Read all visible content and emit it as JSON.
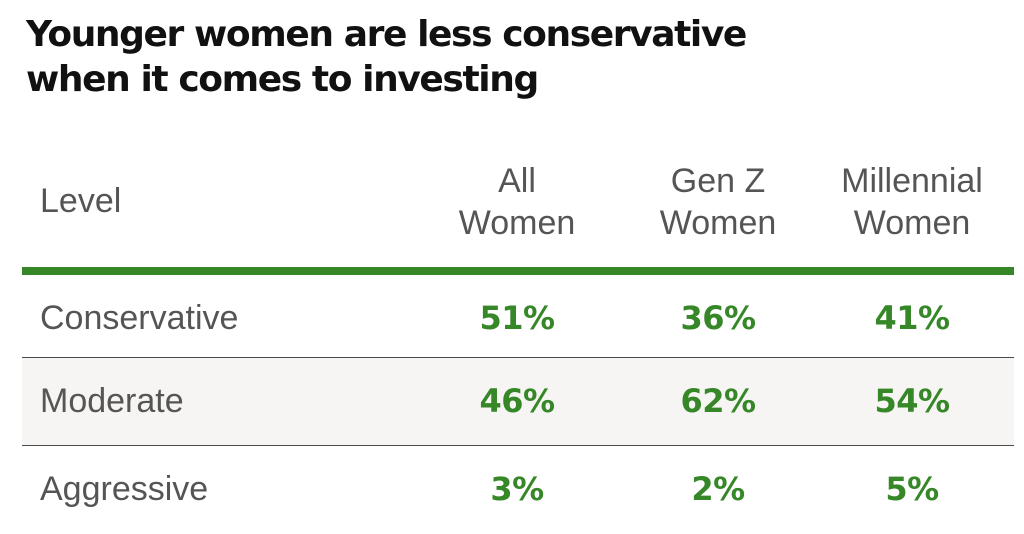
{
  "title": {
    "line1": "Younger women are less conservative",
    "line2": "when it comes to investing"
  },
  "colors": {
    "accent_green": "#368727",
    "header_text": "#555555",
    "title_text": "#111111",
    "shaded_row": "#f6f5f3"
  },
  "chart_data": {
    "type": "table",
    "title": "Younger women are less conservative when it comes to investing",
    "row_header": "Level",
    "columns": [
      {
        "line1": "All",
        "line2": "Women"
      },
      {
        "line1": "Gen Z",
        "line2": "Women"
      },
      {
        "line1": "Millennial",
        "line2": "Women"
      }
    ],
    "rows": [
      {
        "label": "Conservative",
        "values": [
          "51%",
          "36%",
          "41%"
        ]
      },
      {
        "label": "Moderate",
        "values": [
          "46%",
          "62%",
          "54%"
        ]
      },
      {
        "label": "Aggressive",
        "values": [
          "3%",
          "2%",
          "5%"
        ]
      }
    ]
  }
}
